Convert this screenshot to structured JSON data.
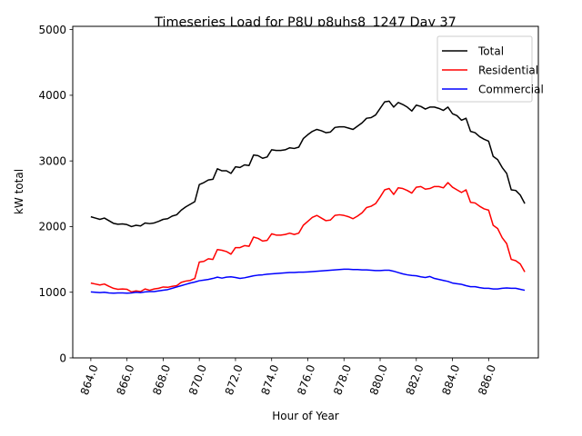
{
  "chart_data": {
    "type": "line",
    "title": "Timeseries Load for P8U p8uhs8_1247  Day 37",
    "xlabel": "Hour of Year",
    "ylabel": "kW total",
    "xlim": [
      863.0,
      888.75
    ],
    "ylim": [
      0,
      5050
    ],
    "x_ticks": [
      864.0,
      866.0,
      868.0,
      870.0,
      872.0,
      874.0,
      876.0,
      878.0,
      880.0,
      882.0,
      884.0,
      886.0
    ],
    "x_tick_labels": [
      "864.0",
      "866.0",
      "868.0",
      "870.0",
      "872.0",
      "874.0",
      "876.0",
      "878.0",
      "880.0",
      "882.0",
      "884.0",
      "886.0"
    ],
    "y_ticks": [
      0,
      1000,
      2000,
      3000,
      4000,
      5000
    ],
    "y_tick_labels": [
      "0",
      "1000",
      "2000",
      "3000",
      "4000",
      "5000"
    ],
    "legend_position": "top-right",
    "x_start": 864.0,
    "x_step": 0.25,
    "series": [
      {
        "name": "Total",
        "color": "#000000",
        "values": [
          2150,
          2130,
          2110,
          2130,
          2090,
          2050,
          2035,
          2040,
          2030,
          2000,
          2020,
          2010,
          2055,
          2045,
          2055,
          2080,
          2110,
          2120,
          2160,
          2180,
          2250,
          2300,
          2340,
          2380,
          2640,
          2670,
          2710,
          2720,
          2880,
          2850,
          2850,
          2810,
          2910,
          2900,
          2940,
          2930,
          3090,
          3080,
          3040,
          3060,
          3170,
          3160,
          3160,
          3170,
          3200,
          3190,
          3210,
          3340,
          3400,
          3450,
          3480,
          3460,
          3430,
          3440,
          3510,
          3520,
          3520,
          3500,
          3480,
          3530,
          3580,
          3650,
          3660,
          3700,
          3800,
          3900,
          3910,
          3820,
          3890,
          3860,
          3820,
          3760,
          3850,
          3830,
          3790,
          3820,
          3820,
          3800,
          3770,
          3820,
          3720,
          3690,
          3620,
          3650,
          3450,
          3430,
          3370,
          3330,
          3300,
          3070,
          3020,
          2900,
          2810,
          2560,
          2550,
          2480,
          2350
        ]
      },
      {
        "name": "Residential",
        "color": "#ff0000",
        "values": [
          1140,
          1125,
          1110,
          1125,
          1090,
          1060,
          1045,
          1050,
          1045,
          1005,
          1020,
          1010,
          1050,
          1030,
          1050,
          1060,
          1080,
          1075,
          1090,
          1100,
          1150,
          1170,
          1180,
          1210,
          1460,
          1470,
          1510,
          1500,
          1650,
          1640,
          1620,
          1580,
          1680,
          1680,
          1710,
          1700,
          1840,
          1820,
          1780,
          1790,
          1890,
          1870,
          1870,
          1880,
          1900,
          1880,
          1900,
          2020,
          2080,
          2140,
          2170,
          2130,
          2090,
          2100,
          2170,
          2180,
          2170,
          2150,
          2120,
          2160,
          2210,
          2290,
          2310,
          2350,
          2450,
          2560,
          2580,
          2490,
          2590,
          2580,
          2550,
          2510,
          2600,
          2610,
          2570,
          2580,
          2610,
          2610,
          2590,
          2670,
          2600,
          2560,
          2520,
          2560,
          2370,
          2360,
          2310,
          2270,
          2250,
          2020,
          1970,
          1830,
          1740,
          1500,
          1480,
          1430,
          1310
        ]
      },
      {
        "name": "Commercial",
        "color": "#0000ff",
        "values": [
          1005,
          1000,
          995,
          1000,
          990,
          985,
          990,
          990,
          985,
          990,
          1000,
          995,
          1005,
          1010,
          1010,
          1020,
          1030,
          1040,
          1060,
          1080,
          1100,
          1120,
          1140,
          1155,
          1175,
          1185,
          1195,
          1210,
          1230,
          1215,
          1230,
          1235,
          1225,
          1210,
          1220,
          1235,
          1250,
          1260,
          1265,
          1275,
          1280,
          1285,
          1290,
          1295,
          1300,
          1300,
          1305,
          1305,
          1310,
          1315,
          1320,
          1325,
          1330,
          1335,
          1340,
          1345,
          1350,
          1350,
          1345,
          1345,
          1340,
          1340,
          1335,
          1330,
          1330,
          1335,
          1335,
          1320,
          1300,
          1280,
          1265,
          1255,
          1250,
          1235,
          1225,
          1240,
          1210,
          1195,
          1180,
          1165,
          1140,
          1130,
          1120,
          1100,
          1085,
          1085,
          1070,
          1060,
          1060,
          1050,
          1050,
          1060,
          1065,
          1060,
          1060,
          1045,
          1030
        ]
      }
    ]
  }
}
